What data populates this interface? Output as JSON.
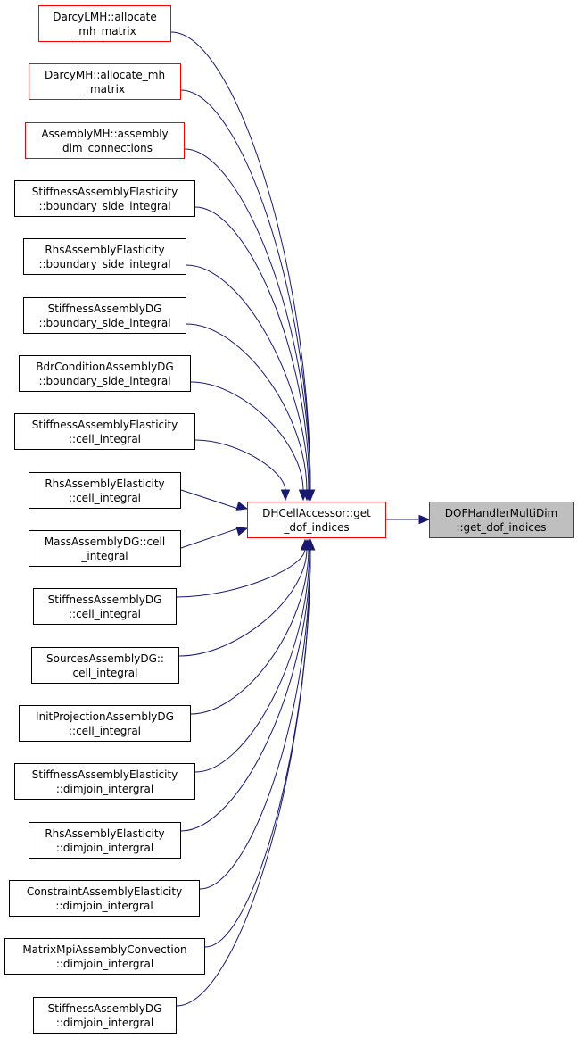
{
  "graph": {
    "edge_color": "#191970",
    "center": {
      "line1": "DHCellAccessor::get",
      "line2": "_dof_indices",
      "border": "red"
    },
    "target": {
      "line1": "DOFHandlerMultiDim",
      "line2": "::get_dof_indices",
      "border": "gray"
    },
    "callers": [
      {
        "line1": "DarcyLMH::allocate",
        "line2": "_mh_matrix",
        "border": "red"
      },
      {
        "line1": "DarcyMH::allocate_mh",
        "line2": "_matrix",
        "border": "red"
      },
      {
        "line1": "AssemblyMH::assembly",
        "line2": "_dim_connections",
        "border": "red"
      },
      {
        "line1": "StiffnessAssemblyElasticity",
        "line2": "::boundary_side_integral",
        "border": "black"
      },
      {
        "line1": "RhsAssemblyElasticity",
        "line2": "::boundary_side_integral",
        "border": "black"
      },
      {
        "line1": "StiffnessAssemblyDG",
        "line2": "::boundary_side_integral",
        "border": "black"
      },
      {
        "line1": "BdrConditionAssemblyDG",
        "line2": "::boundary_side_integral",
        "border": "black"
      },
      {
        "line1": "StiffnessAssemblyElasticity",
        "line2": "::cell_integral",
        "border": "black"
      },
      {
        "line1": "RhsAssemblyElasticity",
        "line2": "::cell_integral",
        "border": "black"
      },
      {
        "line1": "MassAssemblyDG::cell",
        "line2": "_integral",
        "border": "black"
      },
      {
        "line1": "StiffnessAssemblyDG",
        "line2": "::cell_integral",
        "border": "black"
      },
      {
        "line1": "SourcesAssemblyDG::",
        "line2": "cell_integral",
        "border": "black"
      },
      {
        "line1": "InitProjectionAssemblyDG",
        "line2": "::cell_integral",
        "border": "black"
      },
      {
        "line1": "StiffnessAssemblyElasticity",
        "line2": "::dimjoin_intergral",
        "border": "black"
      },
      {
        "line1": "RhsAssemblyElasticity",
        "line2": "::dimjoin_intergral",
        "border": "black"
      },
      {
        "line1": "ConstraintAssemblyElasticity",
        "line2": "::dimjoin_intergral",
        "border": "black"
      },
      {
        "line1": "MatrixMpiAssemblyConvection",
        "line2": "::dimjoin_intergral",
        "border": "black"
      },
      {
        "line1": "StiffnessAssemblyDG",
        "line2": "::dimjoin_intergral",
        "border": "black"
      }
    ]
  }
}
